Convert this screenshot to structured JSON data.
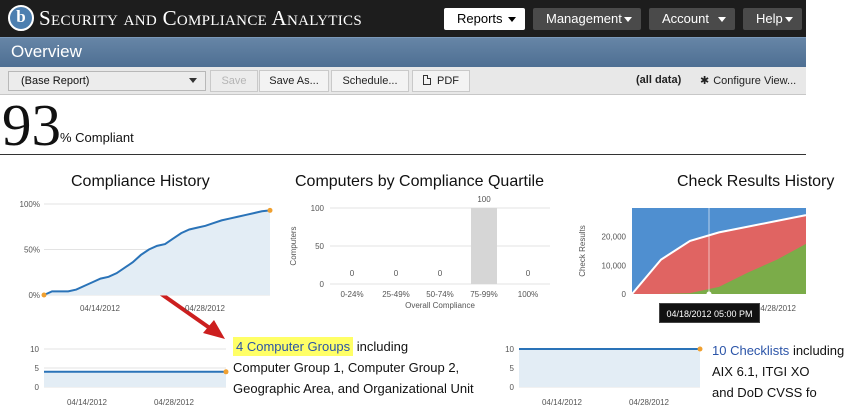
{
  "header": {
    "app_title": "Security and Compliance Analytics",
    "logo_letter": "b",
    "nav": [
      {
        "label": "Reports",
        "active": true
      },
      {
        "label": "Management",
        "active": false
      },
      {
        "label": "Account",
        "active": false
      },
      {
        "label": "Help",
        "active": false
      }
    ]
  },
  "page": {
    "title": "Overview"
  },
  "toolbar": {
    "report_select": "(Base Report)",
    "save": "Save",
    "save_as": "Save As...",
    "schedule": "Schedule...",
    "pdf": "PDF",
    "scope": "(all data)",
    "configure": "Configure View..."
  },
  "score": {
    "value": "93",
    "label": "% Compliant"
  },
  "charts_titles": {
    "history": "Compliance History",
    "quartile": "Computers by Compliance Quartile",
    "check_results": "Check Results History"
  },
  "chart_data": [
    {
      "type": "area",
      "title": "Compliance History",
      "ylim": [
        0,
        100
      ],
      "yticks": [
        "0%",
        "50%",
        "100%"
      ],
      "xticks": [
        "04/14/2012",
        "04/28/2012"
      ],
      "y": [
        0,
        4,
        4,
        4,
        6,
        10,
        14,
        18,
        20,
        24,
        30,
        36,
        44,
        50,
        54,
        56,
        62,
        68,
        72,
        74,
        76,
        79,
        82,
        84,
        86,
        88,
        90,
        92,
        93
      ],
      "color": "#2a73b8",
      "fill": "#e3edf5"
    },
    {
      "type": "bar",
      "title": "Computers by Compliance Quartile",
      "categories": [
        "0-24%",
        "25-49%",
        "50-74%",
        "75-99%",
        "100%"
      ],
      "values": [
        0,
        0,
        0,
        100,
        0
      ],
      "ylim": [
        0,
        100
      ],
      "yticks": [
        "0",
        "50",
        "100"
      ],
      "ylabel": "Computers",
      "xlabel": "Overall Compliance",
      "bar_color": "#d6d6d6"
    },
    {
      "type": "area",
      "title": "Check Results History",
      "ylim": [
        0,
        30000
      ],
      "yticks": [
        "0",
        "10,000",
        "20,000"
      ],
      "ylabel": "Check Results",
      "xticks": [
        "04/28/2012"
      ],
      "series": [
        {
          "values": [
            30000,
            30000,
            30000,
            30000,
            30000,
            30000,
            30000
          ],
          "color": "#4f8fd0"
        },
        {
          "values": [
            0,
            12000,
            18500,
            21500,
            23500,
            25500,
            27500
          ],
          "color": "#e06462"
        },
        {
          "values": [
            0,
            0,
            300,
            2500,
            7500,
            12000,
            17500
          ],
          "color": "#7bac49"
        }
      ],
      "tooltip": "04/18/2012 05:00 PM"
    },
    {
      "type": "line",
      "title": "Computer Groups",
      "ylim": [
        0,
        10
      ],
      "yticks": [
        "0",
        "5",
        "10"
      ],
      "xticks": [
        "04/14/2012",
        "04/28/2012"
      ],
      "y": [
        4,
        4
      ],
      "color": "#2a73b8"
    },
    {
      "type": "line",
      "title": "Checklists",
      "ylim": [
        0,
        10
      ],
      "yticks": [
        "0",
        "5",
        "10"
      ],
      "xticks": [
        "04/14/2012",
        "04/28/2012"
      ],
      "y": [
        10,
        10
      ],
      "color": "#2a73b8"
    }
  ],
  "groups": {
    "highlight": "4 Computer Groups",
    "including": "including",
    "rest": "Computer Group 1, Computer Group 2, Geographic Area, and Organizational Unit"
  },
  "checklists": {
    "link": "10 Checklists",
    "suffix": "including",
    "line2": "AIX 6.1, ITGI XO",
    "line3": "and DoD CVSS fo"
  }
}
